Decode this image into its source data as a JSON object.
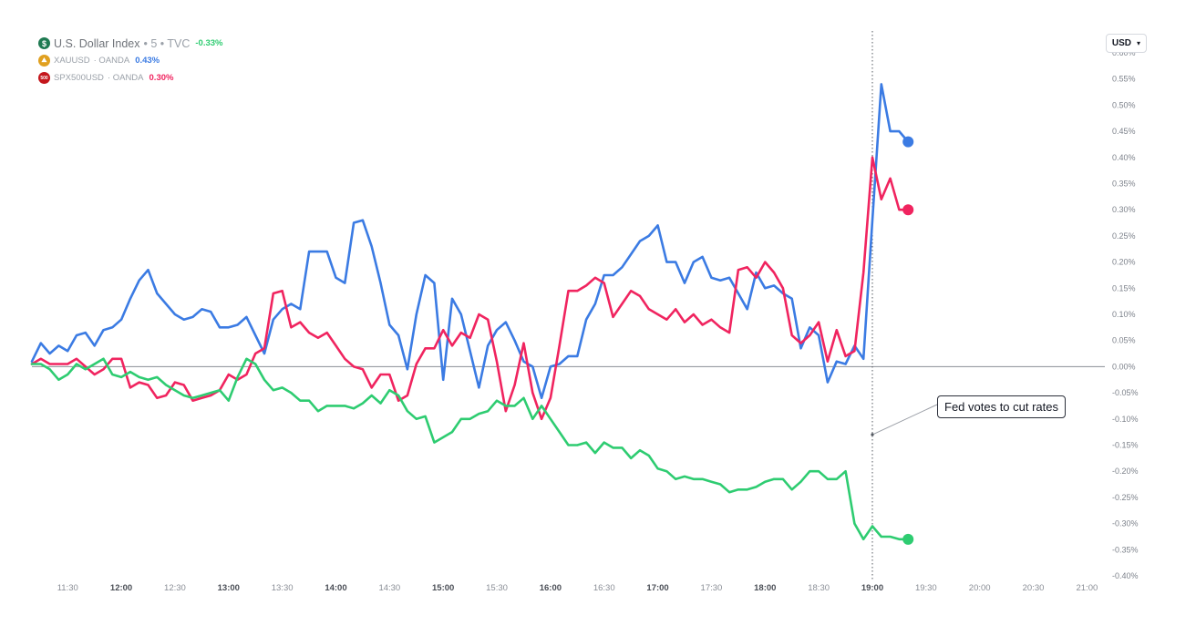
{
  "legend": [
    {
      "symbol": "U.S. Dollar Index",
      "suffix": "• 5 • TVC",
      "change": "-0.33%",
      "icon_glyph": "$",
      "icon": "dollar-icon",
      "color": "#2ecc71",
      "icon_color": "#1f7a52"
    },
    {
      "symbol": "XAUUSD",
      "suffix": "· OANDA",
      "change": "0.43%",
      "icon_glyph": "⛰",
      "icon": "gold-icon",
      "color": "#3b7be3",
      "icon_color": "#e0a020"
    },
    {
      "symbol": "SPX500USD",
      "suffix": "· OANDA",
      "change": "0.30%",
      "icon_glyph": "500",
      "icon": "spx500-icon",
      "color": "#f0245f",
      "icon_color": "#c4161c"
    }
  ],
  "currency_button": {
    "label": "USD",
    "icon": "chevron-down-icon"
  },
  "annotation": {
    "text": "Fed votes to cut rates"
  },
  "chart_data": {
    "type": "line",
    "title": "",
    "xlabel": "",
    "ylabel": "",
    "y_unit": "%",
    "y_axis_side": "right",
    "ylim": [
      -0.4,
      0.6
    ],
    "yticks": [
      "0.60%",
      "0.55%",
      "0.50%",
      "0.45%",
      "0.40%",
      "0.35%",
      "0.30%",
      "0.25%",
      "0.20%",
      "0.15%",
      "0.10%",
      "0.05%",
      "0.00%",
      "-0.05%",
      "-0.10%",
      "-0.15%",
      "-0.20%",
      "-0.25%",
      "-0.30%",
      "-0.35%",
      "-0.40%"
    ],
    "xlim": [
      "11:10",
      "21:10"
    ],
    "xticks": [
      "11:30",
      "12:00",
      "12:30",
      "13:00",
      "13:30",
      "14:00",
      "14:30",
      "15:00",
      "15:30",
      "16:00",
      "16:30",
      "17:00",
      "17:30",
      "18:00",
      "18:30",
      "19:00",
      "19:30",
      "20:00",
      "20:30",
      "21:00"
    ],
    "bold_xticks": [
      "12:00",
      "13:00",
      "14:00",
      "15:00",
      "16:00",
      "17:00",
      "18:00",
      "19:00"
    ],
    "zero_line": true,
    "vertical_marker": "19:00",
    "annotation": {
      "text": "Fed votes to cut rates",
      "anchor_time": "19:00",
      "anchor_value": -0.13
    },
    "series": [
      {
        "name": "XAUUSD",
        "color": "#3b7be3",
        "x": [
          "11:10",
          "11:15",
          "11:20",
          "11:25",
          "11:30",
          "11:35",
          "11:40",
          "11:45",
          "11:50",
          "11:55",
          "12:00",
          "12:05",
          "12:10",
          "12:15",
          "12:20",
          "12:25",
          "12:30",
          "12:35",
          "12:40",
          "12:45",
          "12:50",
          "12:55",
          "13:00",
          "13:05",
          "13:10",
          "13:15",
          "13:20",
          "13:25",
          "13:30",
          "13:35",
          "13:40",
          "13:45",
          "13:50",
          "13:55",
          "14:00",
          "14:05",
          "14:10",
          "14:15",
          "14:20",
          "14:25",
          "14:30",
          "14:35",
          "14:40",
          "14:45",
          "14:50",
          "14:55",
          "15:00",
          "15:05",
          "15:10",
          "15:15",
          "15:20",
          "15:25",
          "15:30",
          "15:35",
          "15:40",
          "15:45",
          "15:50",
          "15:55",
          "16:00",
          "16:05",
          "16:10",
          "16:15",
          "16:20",
          "16:25",
          "16:30",
          "16:35",
          "16:40",
          "16:45",
          "16:50",
          "16:55",
          "17:00",
          "17:05",
          "17:10",
          "17:15",
          "17:20",
          "17:25",
          "17:30",
          "17:35",
          "17:40",
          "17:45",
          "17:50",
          "17:55",
          "18:00",
          "18:05",
          "18:10",
          "18:15",
          "18:20",
          "18:25",
          "18:30",
          "18:35",
          "18:40",
          "18:45",
          "18:50",
          "18:55",
          "19:00",
          "19:05",
          "19:10",
          "19:15",
          "19:20"
        ],
        "values": [
          0.01,
          0.045,
          0.025,
          0.04,
          0.03,
          0.06,
          0.065,
          0.04,
          0.07,
          0.075,
          0.09,
          0.13,
          0.165,
          0.185,
          0.14,
          0.12,
          0.1,
          0.09,
          0.095,
          0.11,
          0.105,
          0.075,
          0.075,
          0.08,
          0.095,
          0.06,
          0.025,
          0.09,
          0.11,
          0.12,
          0.11,
          0.22,
          0.22,
          0.22,
          0.17,
          0.16,
          0.275,
          0.28,
          0.23,
          0.16,
          0.08,
          0.06,
          -0.005,
          0.1,
          0.175,
          0.16,
          -0.025,
          0.13,
          0.1,
          0.03,
          -0.04,
          0.04,
          0.07,
          0.085,
          0.05,
          0.01,
          0.0,
          -0.06,
          0.0,
          0.005,
          0.02,
          0.02,
          0.09,
          0.12,
          0.175,
          0.175,
          0.19,
          0.215,
          0.24,
          0.25,
          0.27,
          0.2,
          0.2,
          0.16,
          0.2,
          0.21,
          0.17,
          0.165,
          0.17,
          0.14,
          0.11,
          0.18,
          0.15,
          0.155,
          0.14,
          0.13,
          0.035,
          0.075,
          0.06,
          -0.03,
          0.01,
          0.005,
          0.04,
          0.015,
          0.28,
          0.54,
          0.45,
          0.45,
          0.43
        ]
      },
      {
        "name": "SPX500USD",
        "color": "#f0245f",
        "x": [
          "11:10",
          "11:15",
          "11:20",
          "11:25",
          "11:30",
          "11:35",
          "11:40",
          "11:45",
          "11:50",
          "11:55",
          "12:00",
          "12:05",
          "12:10",
          "12:15",
          "12:20",
          "12:25",
          "12:30",
          "12:35",
          "12:40",
          "12:45",
          "12:50",
          "12:55",
          "13:00",
          "13:05",
          "13:10",
          "13:15",
          "13:20",
          "13:25",
          "13:30",
          "13:35",
          "13:40",
          "13:45",
          "13:50",
          "13:55",
          "14:00",
          "14:05",
          "14:10",
          "14:15",
          "14:20",
          "14:25",
          "14:30",
          "14:35",
          "14:40",
          "14:45",
          "14:50",
          "14:55",
          "15:00",
          "15:05",
          "15:10",
          "15:15",
          "15:20",
          "15:25",
          "15:30",
          "15:35",
          "15:40",
          "15:45",
          "15:50",
          "15:55",
          "16:00",
          "16:05",
          "16:10",
          "16:15",
          "16:20",
          "16:25",
          "16:30",
          "16:35",
          "16:40",
          "16:45",
          "16:50",
          "16:55",
          "17:00",
          "17:05",
          "17:10",
          "17:15",
          "17:20",
          "17:25",
          "17:30",
          "17:35",
          "17:40",
          "17:45",
          "17:50",
          "17:55",
          "18:00",
          "18:05",
          "18:10",
          "18:15",
          "18:20",
          "18:25",
          "18:30",
          "18:35",
          "18:40",
          "18:45",
          "18:50",
          "18:55",
          "19:00",
          "19:05",
          "19:10",
          "19:15",
          "19:20"
        ],
        "values": [
          0.005,
          0.015,
          0.005,
          0.005,
          0.005,
          0.015,
          0.0,
          -0.015,
          -0.005,
          0.015,
          0.015,
          -0.04,
          -0.03,
          -0.035,
          -0.06,
          -0.055,
          -0.03,
          -0.035,
          -0.065,
          -0.06,
          -0.055,
          -0.045,
          -0.015,
          -0.025,
          -0.015,
          0.025,
          0.035,
          0.14,
          0.145,
          0.075,
          0.085,
          0.065,
          0.055,
          0.065,
          0.04,
          0.015,
          0.0,
          -0.005,
          -0.04,
          -0.015,
          -0.015,
          -0.065,
          -0.055,
          0.005,
          0.035,
          0.035,
          0.07,
          0.04,
          0.065,
          0.055,
          0.1,
          0.09,
          0.01,
          -0.085,
          -0.035,
          0.045,
          -0.05,
          -0.1,
          -0.06,
          0.04,
          0.145,
          0.145,
          0.155,
          0.17,
          0.16,
          0.095,
          0.12,
          0.145,
          0.135,
          0.11,
          0.1,
          0.09,
          0.11,
          0.085,
          0.1,
          0.08,
          0.09,
          0.075,
          0.065,
          0.185,
          0.19,
          0.17,
          0.2,
          0.18,
          0.15,
          0.06,
          0.045,
          0.06,
          0.085,
          0.01,
          0.07,
          0.02,
          0.03,
          0.18,
          0.4,
          0.32,
          0.36,
          0.3,
          0.3
        ]
      },
      {
        "name": "U.S. Dollar Index",
        "color": "#2ecc71",
        "x": [
          "11:10",
          "11:15",
          "11:20",
          "11:25",
          "11:30",
          "11:35",
          "11:40",
          "11:45",
          "11:50",
          "11:55",
          "12:00",
          "12:05",
          "12:10",
          "12:15",
          "12:20",
          "12:25",
          "12:30",
          "12:35",
          "12:40",
          "12:45",
          "12:50",
          "12:55",
          "13:00",
          "13:05",
          "13:10",
          "13:15",
          "13:20",
          "13:25",
          "13:30",
          "13:35",
          "13:40",
          "13:45",
          "13:50",
          "13:55",
          "14:00",
          "14:05",
          "14:10",
          "14:15",
          "14:20",
          "14:25",
          "14:30",
          "14:35",
          "14:40",
          "14:45",
          "14:50",
          "14:55",
          "15:00",
          "15:05",
          "15:10",
          "15:15",
          "15:20",
          "15:25",
          "15:30",
          "15:35",
          "15:40",
          "15:45",
          "15:50",
          "15:55",
          "16:00",
          "16:05",
          "16:10",
          "16:15",
          "16:20",
          "16:25",
          "16:30",
          "16:35",
          "16:40",
          "16:45",
          "16:50",
          "16:55",
          "17:00",
          "17:05",
          "17:10",
          "17:15",
          "17:20",
          "17:25",
          "17:30",
          "17:35",
          "17:40",
          "17:45",
          "17:50",
          "17:55",
          "18:00",
          "18:05",
          "18:10",
          "18:15",
          "18:20",
          "18:25",
          "18:30",
          "18:35",
          "18:40",
          "18:45",
          "18:50",
          "18:55",
          "19:00",
          "19:05",
          "19:10",
          "19:15",
          "19:20"
        ],
        "values": [
          0.005,
          0.005,
          -0.005,
          -0.025,
          -0.015,
          0.005,
          -0.005,
          0.005,
          0.015,
          -0.015,
          -0.02,
          -0.01,
          -0.02,
          -0.025,
          -0.02,
          -0.035,
          -0.045,
          -0.055,
          -0.06,
          -0.055,
          -0.05,
          -0.045,
          -0.065,
          -0.02,
          0.015,
          0.005,
          -0.025,
          -0.045,
          -0.04,
          -0.05,
          -0.065,
          -0.065,
          -0.085,
          -0.075,
          -0.075,
          -0.075,
          -0.08,
          -0.07,
          -0.055,
          -0.07,
          -0.045,
          -0.055,
          -0.085,
          -0.1,
          -0.095,
          -0.145,
          -0.135,
          -0.125,
          -0.1,
          -0.1,
          -0.09,
          -0.085,
          -0.065,
          -0.075,
          -0.075,
          -0.06,
          -0.1,
          -0.075,
          -0.1,
          -0.125,
          -0.15,
          -0.15,
          -0.145,
          -0.165,
          -0.145,
          -0.155,
          -0.155,
          -0.175,
          -0.16,
          -0.17,
          -0.195,
          -0.2,
          -0.215,
          -0.21,
          -0.215,
          -0.215,
          -0.22,
          -0.225,
          -0.24,
          -0.235,
          -0.235,
          -0.23,
          -0.22,
          -0.215,
          -0.215,
          -0.235,
          -0.22,
          -0.2,
          -0.2,
          -0.215,
          -0.215,
          -0.2,
          -0.3,
          -0.33,
          -0.305,
          -0.325,
          -0.325,
          -0.33,
          -0.33
        ]
      }
    ]
  }
}
